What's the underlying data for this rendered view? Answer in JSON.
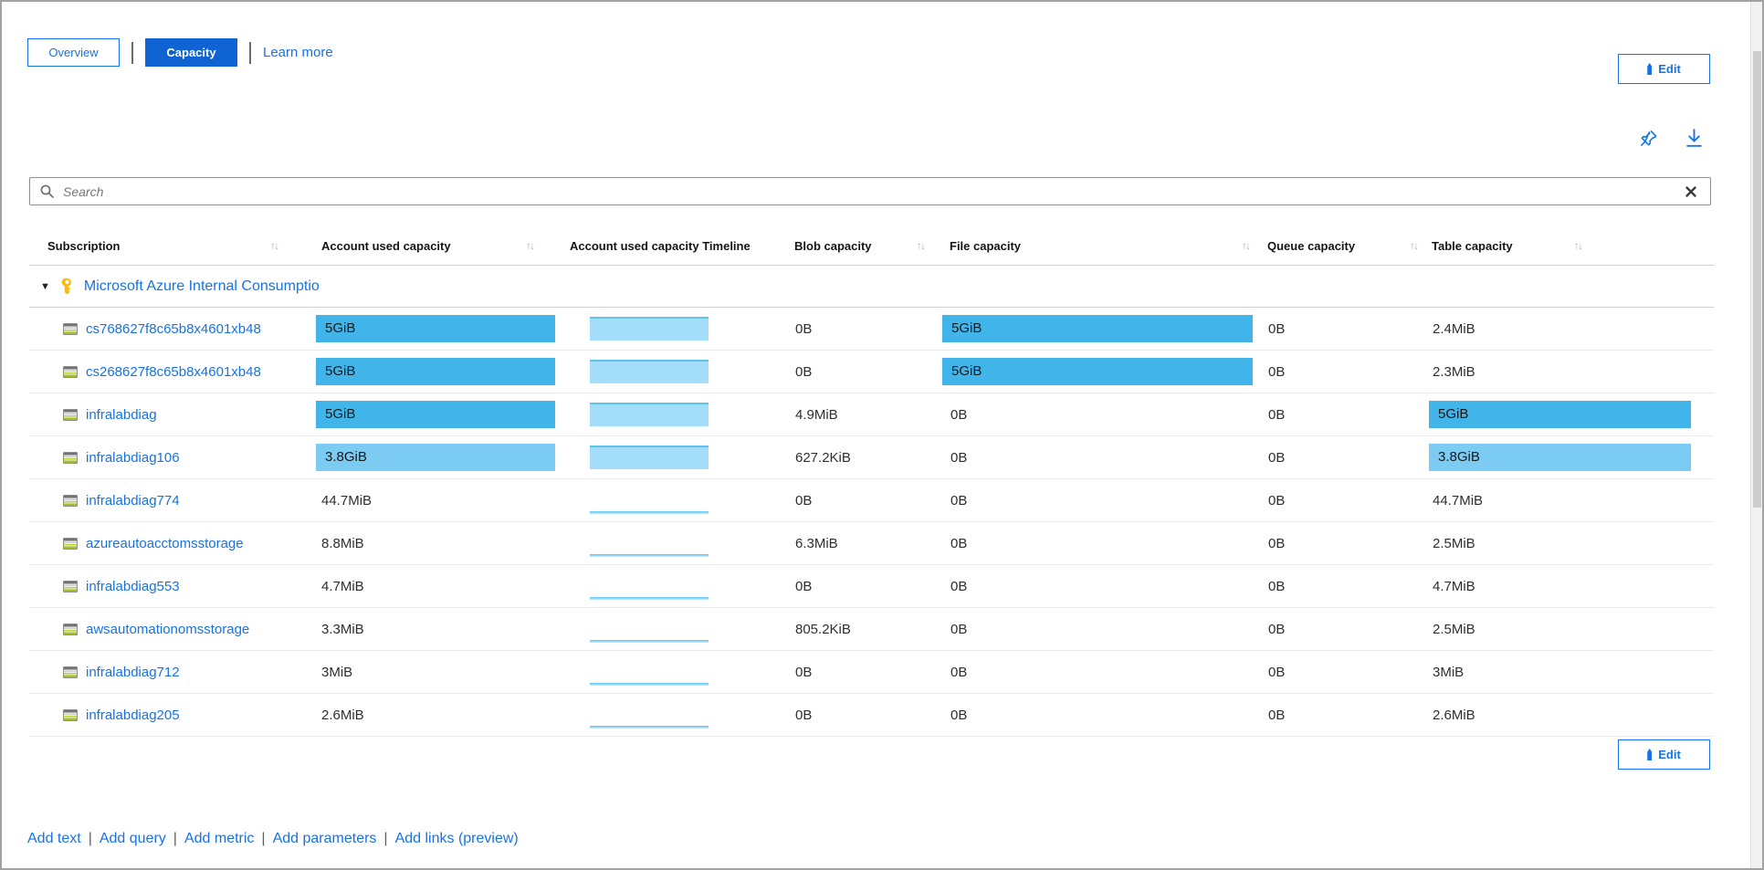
{
  "toolbar": {
    "tabs": [
      {
        "label": "Overview",
        "selected": false
      },
      {
        "label": "Capacity",
        "selected": true
      }
    ],
    "separator": "|",
    "learn_more_label": "Learn more",
    "edit_label": "Edit"
  },
  "search": {
    "placeholder": "Search",
    "value": ""
  },
  "icons": {
    "sort_glyph": "↑↓",
    "expand_glyph": "▼",
    "pin": "pushpin-icon",
    "download": "download-icon",
    "magnifier": "search-icon",
    "clear": "clear-x-icon",
    "key": "key-icon",
    "storage": "storage-account-icon"
  },
  "grid": {
    "columns": [
      {
        "label": "Subscription",
        "sortable": true
      },
      {
        "label": "Account used capacity",
        "sortable": true
      },
      {
        "label": "Account used capacity Timeline",
        "sortable": false
      },
      {
        "label": "Blob capacity",
        "sortable": true
      },
      {
        "label": "File capacity",
        "sortable": true
      },
      {
        "label": "Queue capacity",
        "sortable": true
      },
      {
        "label": "Table capacity",
        "sortable": true
      }
    ],
    "group": {
      "label": "Microsoft Azure Internal Consumptio"
    },
    "rows": [
      {
        "name": "cs768627f8c65b8x4601xb48",
        "account": {
          "text": "5GiB",
          "bar": "strong"
        },
        "timeline": "high",
        "blob": {
          "text": "0B"
        },
        "file": {
          "text": "5GiB",
          "bar": "strong"
        },
        "queue": {
          "text": "0B"
        },
        "table": {
          "text": "2.4MiB"
        }
      },
      {
        "name": "cs268627f8c65b8x4601xb48",
        "account": {
          "text": "5GiB",
          "bar": "strong"
        },
        "timeline": "high",
        "blob": {
          "text": "0B"
        },
        "file": {
          "text": "5GiB",
          "bar": "strong"
        },
        "queue": {
          "text": "0B"
        },
        "table": {
          "text": "2.3MiB"
        }
      },
      {
        "name": "infralabdiag",
        "account": {
          "text": "5GiB",
          "bar": "strong"
        },
        "timeline": "high",
        "blob": {
          "text": "4.9MiB"
        },
        "file": {
          "text": "0B"
        },
        "queue": {
          "text": "0B"
        },
        "table": {
          "text": "5GiB",
          "bar": "strong"
        }
      },
      {
        "name": "infralabdiag106",
        "account": {
          "text": "3.8GiB",
          "bar": "light"
        },
        "timeline": "high",
        "blob": {
          "text": "627.2KiB"
        },
        "file": {
          "text": "0B"
        },
        "queue": {
          "text": "0B"
        },
        "table": {
          "text": "3.8GiB",
          "bar": "light"
        }
      },
      {
        "name": "infralabdiag774",
        "account": {
          "text": "44.7MiB"
        },
        "timeline": "low",
        "blob": {
          "text": "0B"
        },
        "file": {
          "text": "0B"
        },
        "queue": {
          "text": "0B"
        },
        "table": {
          "text": "44.7MiB"
        }
      },
      {
        "name": "azureautoacctomsstorage",
        "account": {
          "text": "8.8MiB"
        },
        "timeline": "low",
        "blob": {
          "text": "6.3MiB"
        },
        "file": {
          "text": "0B"
        },
        "queue": {
          "text": "0B"
        },
        "table": {
          "text": "2.5MiB"
        }
      },
      {
        "name": "infralabdiag553",
        "account": {
          "text": "4.7MiB"
        },
        "timeline": "low",
        "blob": {
          "text": "0B"
        },
        "file": {
          "text": "0B"
        },
        "queue": {
          "text": "0B"
        },
        "table": {
          "text": "4.7MiB"
        }
      },
      {
        "name": "awsautomationomsstorage",
        "account": {
          "text": "3.3MiB"
        },
        "timeline": "low",
        "blob": {
          "text": "805.2KiB"
        },
        "file": {
          "text": "0B"
        },
        "queue": {
          "text": "0B"
        },
        "table": {
          "text": "2.5MiB"
        }
      },
      {
        "name": "infralabdiag712",
        "account": {
          "text": "3MiB"
        },
        "timeline": "low",
        "blob": {
          "text": "0B"
        },
        "file": {
          "text": "0B"
        },
        "queue": {
          "text": "0B"
        },
        "table": {
          "text": "3MiB"
        }
      },
      {
        "name": "infralabdiag205",
        "account": {
          "text": "2.6MiB"
        },
        "timeline": "low",
        "blob": {
          "text": "0B"
        },
        "file": {
          "text": "0B"
        },
        "queue": {
          "text": "0B"
        },
        "table": {
          "text": "2.6MiB"
        }
      }
    ]
  },
  "footer": {
    "links": [
      "Add text",
      "Add query",
      "Add metric",
      "Add parameters",
      "Add links (preview)"
    ],
    "separator": "|"
  },
  "colors": {
    "accent": "#1673e6",
    "tab_selected_bg": "#1063d2",
    "bar_strong": "#41b4ea",
    "bar_light": "#7bcbf3",
    "timeline_fill": "#a3ddf9",
    "timeline_edge": "#5fc3ef",
    "key_yellow": "#fdb913"
  }
}
